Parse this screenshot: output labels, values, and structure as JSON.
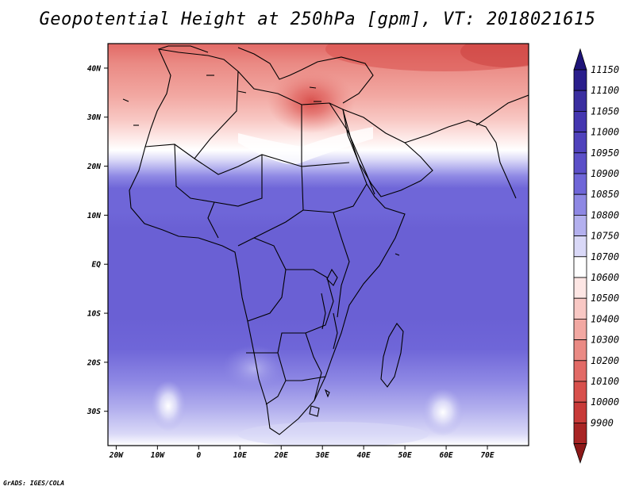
{
  "title": "Geopotential Height at 250hPa [gpm], VT: 2018021615",
  "credit": "GrADS: IGES/COLA",
  "map": {
    "lon_range": [
      -22,
      80
    ],
    "lat_range": [
      -37,
      45
    ],
    "lon_ticks": [
      {
        "value": -20,
        "label": "20W"
      },
      {
        "value": -10,
        "label": "10W"
      },
      {
        "value": 0,
        "label": "0"
      },
      {
        "value": 10,
        "label": "10E"
      },
      {
        "value": 20,
        "label": "20E"
      },
      {
        "value": 30,
        "label": "30E"
      },
      {
        "value": 40,
        "label": "40E"
      },
      {
        "value": 50,
        "label": "50E"
      },
      {
        "value": 60,
        "label": "60E"
      },
      {
        "value": 70,
        "label": "70E"
      }
    ],
    "lat_ticks": [
      {
        "value": 40,
        "label": "40N"
      },
      {
        "value": 30,
        "label": "30N"
      },
      {
        "value": 20,
        "label": "20N"
      },
      {
        "value": 10,
        "label": "10N"
      },
      {
        "value": 0,
        "label": "EQ"
      },
      {
        "value": -10,
        "label": "10S"
      },
      {
        "value": -20,
        "label": "20S"
      },
      {
        "value": -30,
        "label": "30S"
      }
    ]
  },
  "colorbar": {
    "levels": [
      {
        "label": "11150",
        "color": "#2a1e8c"
      },
      {
        "label": "11100",
        "color": "#3a2ea0"
      },
      {
        "label": "11050",
        "color": "#4436b0"
      },
      {
        "label": "11000",
        "color": "#4f42bc"
      },
      {
        "label": "10950",
        "color": "#5b4fc8"
      },
      {
        "label": "10900",
        "color": "#6f66d8"
      },
      {
        "label": "10850",
        "color": "#8e88e4"
      },
      {
        "label": "10800",
        "color": "#b3b0ee"
      },
      {
        "label": "10750",
        "color": "#d9d8f7"
      },
      {
        "label": "10700",
        "color": "#ffffff"
      },
      {
        "label": "10600",
        "color": "#fde6e4"
      },
      {
        "label": "10500",
        "color": "#f8c8c4"
      },
      {
        "label": "10400",
        "color": "#f2a8a2"
      },
      {
        "label": "10300",
        "color": "#ea8a84"
      },
      {
        "label": "10200",
        "color": "#e26a66"
      },
      {
        "label": "10100",
        "color": "#d8504c"
      },
      {
        "label": "10000",
        "color": "#c83a38"
      },
      {
        "label": "9900",
        "color": "#a82424"
      }
    ],
    "top_arrow_color": "#1e1478",
    "bottom_arrow_color": "#8c1818"
  }
}
